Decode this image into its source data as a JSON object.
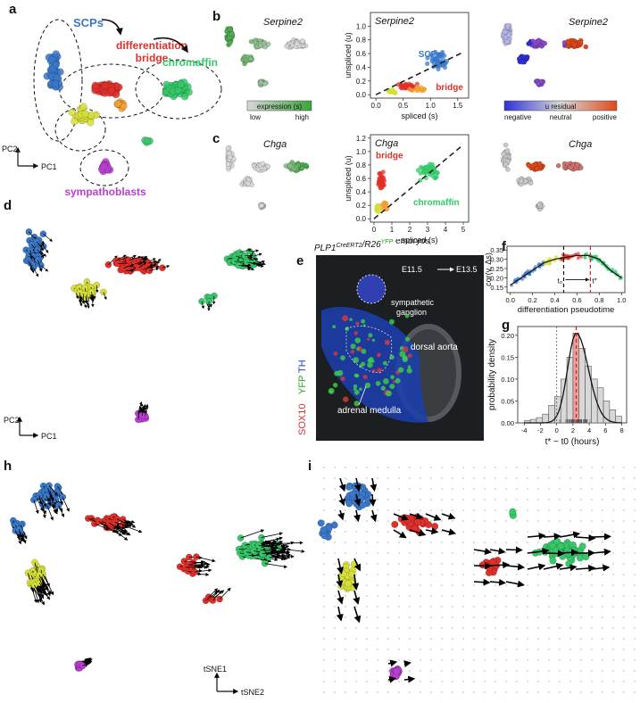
{
  "panel_letters": {
    "a": "a",
    "b": "b",
    "c": "c",
    "d": "d",
    "e": "e",
    "f": "f",
    "g": "g",
    "h": "h",
    "i": "i"
  },
  "colors": {
    "scp": "#3a78c9",
    "bridge": "#e0302a",
    "chromaffin": "#36c86a",
    "yellow": "#d6df3a",
    "orange": "#f0a030",
    "sympatho": "#b83fd0",
    "grey": "#9a9a9a",
    "expr_low": "#d8d8d8",
    "expr_high": "#3aa43a",
    "resid_neg": "#3030d8",
    "resid_neu": "#d8d8d8",
    "resid_pos": "#e04a1a"
  },
  "panel_a": {
    "scp_label": "SCPs",
    "bridge_label_1": "differentiation",
    "bridge_label_2": "bridge",
    "chromaffin_label": "chromaffin",
    "sympatho_label": "sympathoblasts",
    "axis_y": "PC2",
    "axis_x": "PC1"
  },
  "panel_b": {
    "gene": "Serpine2",
    "legend_title": "expression (s)",
    "legend_low": "low",
    "legend_high": "high",
    "resid_title": "u residual",
    "resid_neg": "negative",
    "resid_neu": "neutral",
    "resid_pos": "positive",
    "scatter_scp_label": "SCPs",
    "scatter_bridge_label": "bridge"
  },
  "panel_c": {
    "gene": "Chga",
    "scatter_bridge_label": "bridge",
    "scatter_chromaffin_label": "chromaffin"
  },
  "panel_d": {
    "axis_y": "PC2",
    "axis_x": "PC1"
  },
  "panel_e": {
    "title": "PLP1CreERT2/R26YFP embryos",
    "title_gene": "PLP1",
    "title_sup1": "CreERT2",
    "title_r26": "/R26",
    "title_sup2": "YFP",
    "title_tail": " embryos",
    "time_from": "E11.5",
    "time_to": "E13.5",
    "label_ganglion_1": "sympathetic",
    "label_ganglion_2": "ganglion",
    "label_aorta": "dorsal aorta",
    "label_medulla": "adrenal medulla",
    "stain_sox10": "SOX10",
    "stain_yfp": "YFP",
    "stain_th": "TH"
  },
  "panel_h": {
    "axis_y": "tSNE1",
    "axis_x": "tSNE2"
  },
  "chart_data": [
    {
      "id": "b_scatter",
      "type": "scatter",
      "title": "Serpine2",
      "xlabel": "spliced (s)",
      "ylabel": "unspliced (u)",
      "xlim": [
        -0.1,
        1.7
      ],
      "ylim": [
        -0.05,
        1.2
      ],
      "xticks": [
        0.0,
        0.5,
        1.0,
        1.5
      ],
      "yticks": [
        0.0,
        0.2,
        0.4,
        0.6,
        0.8,
        1.0
      ],
      "xtick_labels": [
        "0.0",
        "0.5",
        "1.0",
        "1.5"
      ],
      "ytick_labels": [
        "0.0",
        "0.2",
        "0.4",
        "0.6",
        "0.8",
        "1.0"
      ],
      "fit_line": {
        "x": [
          0,
          1.6
        ],
        "y": [
          0,
          0.62
        ]
      },
      "annotations": [
        "SCPs",
        "bridge"
      ]
    },
    {
      "id": "c_scatter",
      "type": "scatter",
      "title": "Chga",
      "xlabel": "spliced (s)",
      "ylabel": "unspliced (u)",
      "xlim": [
        -0.2,
        5.3
      ],
      "ylim": [
        -0.05,
        1.25
      ],
      "xticks": [
        0,
        1,
        2,
        3,
        4,
        5
      ],
      "yticks": [
        0.0,
        0.2,
        0.4,
        0.6,
        0.8,
        1.0,
        1.2
      ],
      "xtick_labels": [
        "0",
        "1",
        "2",
        "3",
        "4",
        "5"
      ],
      "ytick_labels": [
        "0.0",
        "0.2",
        "0.4",
        "0.6",
        "0.8",
        "1.0",
        "1.2"
      ],
      "fit_line": {
        "x": [
          0,
          5
        ],
        "y": [
          0,
          1.1
        ]
      },
      "annotations": [
        "bridge",
        "chromaffin"
      ]
    },
    {
      "id": "f_scatter",
      "type": "scatter",
      "title": "",
      "xlabel": "differentiation pseudotime",
      "ylabel": "cor(v, Δs)",
      "xlim": [
        -0.03,
        1.03
      ],
      "ylim": [
        0.12,
        0.37
      ],
      "xticks": [
        0.0,
        0.2,
        0.4,
        0.6,
        0.8,
        1.0
      ],
      "yticks": [
        0.15,
        0.2,
        0.25,
        0.3,
        0.35
      ],
      "xtick_labels": [
        "0.0",
        "0.2",
        "0.4",
        "0.6",
        "0.8",
        "1.0"
      ],
      "ytick_labels": [
        "0.15",
        "0.20",
        "0.25",
        "0.30",
        "0.35"
      ],
      "vlines": [
        0.48,
        0.72
      ],
      "annotation_t0": "t₀",
      "annotation_tstar": "t*",
      "trend": {
        "x": [
          0.0,
          0.1,
          0.2,
          0.3,
          0.4,
          0.5,
          0.6,
          0.7,
          0.8,
          0.9,
          1.0
        ],
        "y": [
          0.16,
          0.2,
          0.24,
          0.28,
          0.3,
          0.31,
          0.32,
          0.32,
          0.3,
          0.24,
          0.2
        ]
      }
    },
    {
      "id": "g_hist",
      "type": "bar",
      "title": "",
      "xlabel": "t* − t0 (hours)",
      "ylabel": "probability density",
      "xlim": [
        -4.8,
        8.6
      ],
      "ylim": [
        0,
        0.22
      ],
      "xticks": [
        -4,
        -2,
        0,
        2,
        4,
        6,
        8
      ],
      "yticks": [
        0.0,
        0.05,
        0.1,
        0.15,
        0.2
      ],
      "xtick_labels": [
        "-4",
        "-2",
        "0",
        "2",
        "4",
        "6",
        "8"
      ],
      "ytick_labels": [
        "0.00",
        "0.05",
        "0.10",
        "0.15",
        "0.20"
      ],
      "bin_edges": [
        -4,
        -3.25,
        -2.5,
        -1.75,
        -1,
        -0.25,
        0.5,
        1.25,
        2,
        2.75,
        3.5,
        4.25,
        5,
        5.75,
        6.5,
        7.25,
        8
      ],
      "values": [
        0.005,
        0.008,
        0.012,
        0.02,
        0.04,
        0.06,
        0.1,
        0.15,
        0.205,
        0.17,
        0.13,
        0.1,
        0.08,
        0.05,
        0.03,
        0.015
      ],
      "vlines": [
        0,
        2.4
      ]
    }
  ]
}
